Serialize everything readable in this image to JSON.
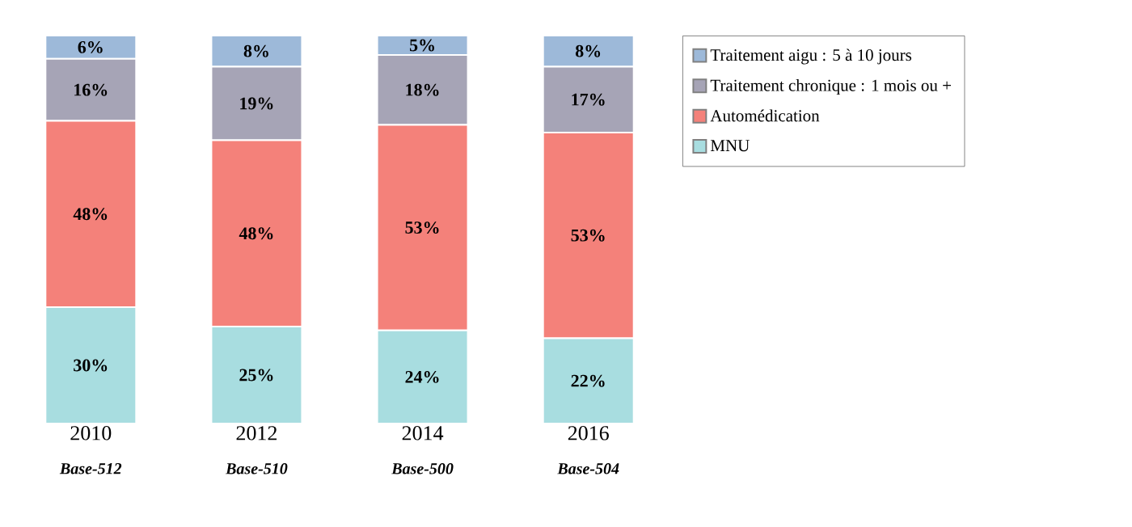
{
  "chart_data": {
    "type": "bar",
    "stacked": true,
    "legend": "right",
    "tick_labels": "x",
    "categories": [
      "2010",
      "2012",
      "2014",
      "2016"
    ],
    "series": [
      {
        "name": "MNU",
        "color": "#a8dde0",
        "values": [
          30,
          25,
          24,
          22
        ],
        "value_labels": [
          "30%",
          "25%",
          "24%",
          "22%"
        ]
      },
      {
        "name": "Automédication",
        "color": "#f4817a",
        "values": [
          48,
          48,
          53,
          53
        ],
        "value_labels": [
          "48%",
          "48%",
          "53%",
          "53%"
        ]
      },
      {
        "name": "Traitement chronique : 1 mois ou +",
        "color": "#a6a4b6",
        "values": [
          16,
          19,
          18,
          17
        ],
        "value_labels": [
          "16%",
          "19%",
          "18%",
          "17%"
        ]
      },
      {
        "name": "Traitement aigu : 5 à 10 jours",
        "color": "#9db9d9",
        "values": [
          6,
          8,
          5,
          8
        ],
        "value_labels": [
          "6%",
          "8%",
          "5%",
          "8%"
        ]
      }
    ],
    "annotations": [
      "Base-512",
      "Base-510",
      "Base-500",
      "Base-504"
    ]
  }
}
